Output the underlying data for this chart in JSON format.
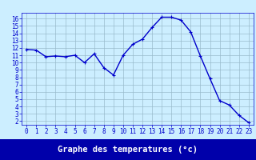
{
  "hours": [
    0,
    1,
    2,
    3,
    4,
    5,
    6,
    7,
    8,
    9,
    10,
    11,
    12,
    13,
    14,
    15,
    16,
    17,
    18,
    19,
    20,
    21,
    22,
    23
  ],
  "temperatures": [
    11.8,
    11.7,
    10.8,
    10.9,
    10.8,
    11.0,
    10.0,
    11.2,
    9.3,
    8.3,
    11.0,
    12.5,
    13.2,
    14.8,
    16.2,
    16.2,
    15.8,
    14.2,
    10.9,
    7.8,
    4.8,
    4.2,
    2.8,
    1.8
  ],
  "line_color": "#0000cc",
  "marker": "+",
  "marker_color": "#0000cc",
  "bg_color": "#cceeff",
  "grid_color": "#99bbcc",
  "xlabel": "Graphe des temperatures (°c)",
  "xlabel_color": "#ffffff",
  "xlabel_bg": "#0000aa",
  "ylim": [
    1.5,
    16.8
  ],
  "xlim": [
    -0.5,
    23.5
  ],
  "yticks": [
    2,
    3,
    4,
    5,
    6,
    7,
    8,
    9,
    10,
    11,
    12,
    13,
    14,
    15,
    16
  ],
  "xticks": [
    0,
    1,
    2,
    3,
    4,
    5,
    6,
    7,
    8,
    9,
    10,
    11,
    12,
    13,
    14,
    15,
    16,
    17,
    18,
    19,
    20,
    21,
    22,
    23
  ],
  "tick_color": "#0000cc",
  "tick_fontsize": 5.5,
  "xlabel_fontsize": 7.5,
  "linewidth": 1.0,
  "markersize": 3.5
}
